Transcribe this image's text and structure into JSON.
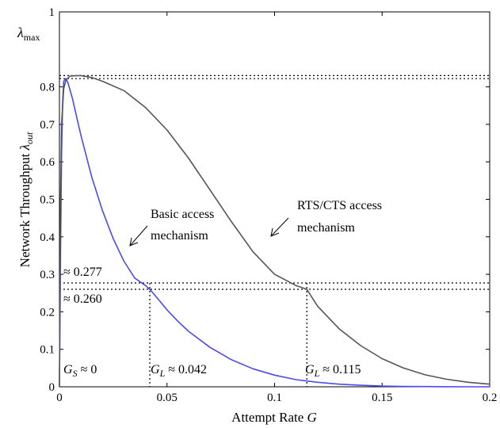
{
  "chart_data": {
    "type": "line",
    "xlabel": {
      "text": "Attempt Rate ",
      "italic": "G"
    },
    "ylabel": {
      "text": "Network Throughput ",
      "symbol": "λ",
      "hat": "^",
      "sub": "out"
    },
    "xlim": [
      0,
      0.2
    ],
    "ylim": [
      0,
      1
    ],
    "xticks": [
      0,
      0.05,
      0.1,
      0.15,
      0.2
    ],
    "xtick_labels": [
      "0",
      "0.05",
      "0.1",
      "0.15",
      "0.2"
    ],
    "yticks": [
      0,
      0.1,
      0.2,
      0.3,
      0.4,
      0.5,
      0.6,
      0.7,
      0.8,
      1
    ],
    "ytick_labels": [
      "0",
      "0.1",
      "0.2",
      "0.3",
      "0.4",
      "0.5",
      "0.6",
      "0.7",
      "0.8",
      "1"
    ],
    "grid": false,
    "series": [
      {
        "name": "Basic access mechanism",
        "color": "#4a4af0",
        "x": [
          0,
          0.0005,
          0.001,
          0.0015,
          0.002,
          0.003,
          0.004,
          0.006,
          0.008,
          0.01,
          0.015,
          0.02,
          0.025,
          0.03,
          0.035,
          0.04,
          0.042,
          0.045,
          0.05,
          0.055,
          0.06,
          0.07,
          0.08,
          0.09,
          0.1,
          0.11,
          0.12,
          0.13,
          0.14,
          0.15,
          0.16,
          0.17,
          0.18,
          0.19,
          0.2
        ],
        "y": [
          0,
          0.36,
          0.62,
          0.76,
          0.815,
          0.822,
          0.81,
          0.77,
          0.72,
          0.67,
          0.56,
          0.47,
          0.395,
          0.335,
          0.29,
          0.27,
          0.26,
          0.24,
          0.205,
          0.175,
          0.148,
          0.105,
          0.072,
          0.048,
          0.031,
          0.019,
          0.012,
          0.007,
          0.004,
          0.002,
          0.001,
          0.0006,
          0.0003,
          0.0001,
          0
        ]
      },
      {
        "name": "RTS/CTS access mechanism",
        "color": "#555555",
        "x": [
          0,
          0.0005,
          0.001,
          0.002,
          0.003,
          0.005,
          0.008,
          0.01,
          0.015,
          0.02,
          0.03,
          0.04,
          0.05,
          0.06,
          0.07,
          0.08,
          0.09,
          0.1,
          0.11,
          0.115,
          0.12,
          0.13,
          0.14,
          0.15,
          0.16,
          0.17,
          0.18,
          0.19,
          0.2
        ],
        "y": [
          0,
          0.5,
          0.7,
          0.795,
          0.818,
          0.829,
          0.83,
          0.83,
          0.825,
          0.815,
          0.79,
          0.745,
          0.685,
          0.61,
          0.525,
          0.44,
          0.36,
          0.3,
          0.27,
          0.26,
          0.215,
          0.155,
          0.11,
          0.075,
          0.05,
          0.032,
          0.02,
          0.012,
          0.007
        ]
      }
    ],
    "reference_lines": {
      "horizontal": [
        0.822,
        0.83,
        0.26,
        0.277
      ],
      "vertical": [
        0.042,
        0.115
      ]
    },
    "annotations": {
      "lambda_max": {
        "symbol": "λ",
        "sub": "max"
      },
      "y277": "≈ 0.277",
      "y260": "≈ 0.260",
      "gs": {
        "var": "G",
        "sub": "S",
        "rest": " ≈ 0"
      },
      "gl1": {
        "var": "G",
        "sub": "L",
        "rest": " ≈ 0.042"
      },
      "gl2": {
        "var": "G",
        "sub": "L",
        "rest": " ≈ 0.115"
      },
      "basic_line1": "Basic access",
      "basic_line2": "mechanism",
      "rts_line1": "RTS/CTS access",
      "rts_line2": "mechanism"
    }
  }
}
